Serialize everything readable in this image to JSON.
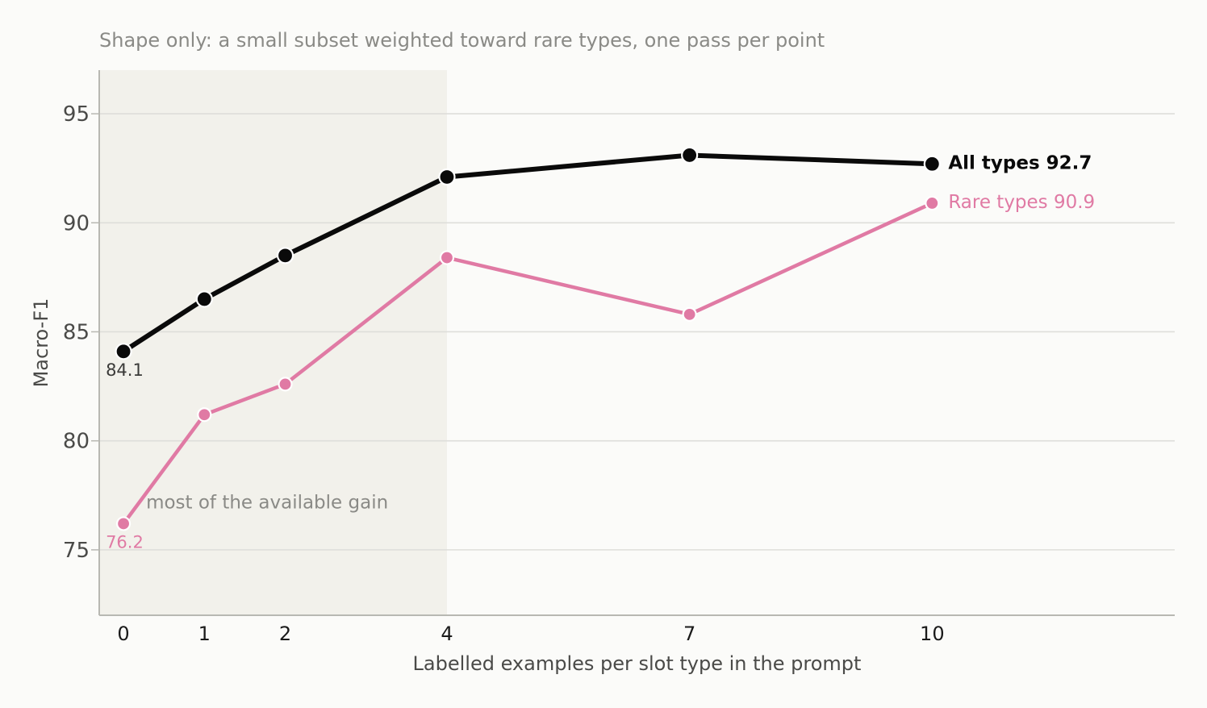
{
  "chart_data": {
    "type": "line",
    "subtitle": "Shape only: a small subset weighted toward rare types, one pass per point",
    "xlabel": "Labelled examples per slot type in the prompt",
    "ylabel": "Macro-F1",
    "x": [
      0,
      1,
      2,
      4,
      7,
      10
    ],
    "x_tick_labels": [
      "0",
      "1",
      "2",
      "4",
      "7",
      "10"
    ],
    "xlim": [
      -0.3,
      13
    ],
    "ylim": [
      72,
      97
    ],
    "y_ticks": [
      75,
      80,
      85,
      90,
      95
    ],
    "grid": "horizontal",
    "series": [
      {
        "name": "All types",
        "color": "#0a0a0a",
        "values": [
          84.1,
          86.5,
          88.5,
          92.1,
          93.1,
          92.7
        ],
        "start_label": "84.1",
        "end_label_name": "All types",
        "end_label_value": "92.7"
      },
      {
        "name": "Rare types",
        "color": "#e07aa4",
        "values": [
          76.2,
          81.2,
          82.6,
          88.4,
          85.8,
          90.9
        ],
        "start_label": "76.2",
        "end_label_name": "Rare types",
        "end_label_value": "90.9"
      }
    ],
    "shaded_region": {
      "x_from": -0.3,
      "x_to": 4,
      "color": "#f2f1eb",
      "annotation": "most of the available gain"
    }
  }
}
